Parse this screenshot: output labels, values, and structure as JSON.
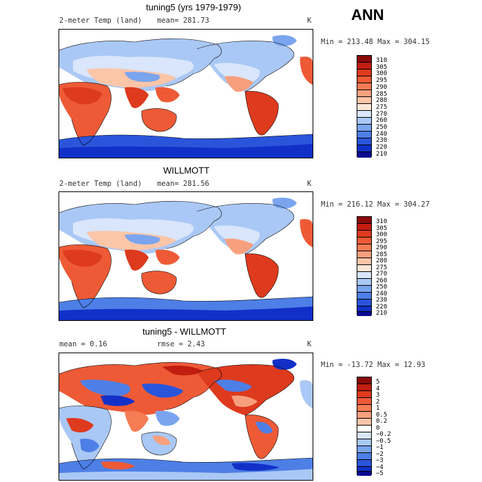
{
  "header": {
    "season": "ANN"
  },
  "panels": [
    {
      "title": "tuning5 (yrs 1979-1979)",
      "variable": "2-meter Temp (land)",
      "stat1": "mean= 281.73",
      "units": "K",
      "range": "Min = 213.48 Max = 304.15",
      "legend_levels": [
        "310",
        "305",
        "300",
        "295",
        "290",
        "285",
        "280",
        "275",
        "270",
        "260",
        "250",
        "240",
        "230",
        "220",
        "210"
      ]
    },
    {
      "title": "WILLMOTT",
      "variable": "2-meter Temp (land)",
      "stat1": "mean= 281.56",
      "units": "K",
      "range": "Min = 216.12 Max = 304.27",
      "legend_levels": [
        "310",
        "305",
        "300",
        "295",
        "290",
        "285",
        "280",
        "275",
        "270",
        "260",
        "250",
        "240",
        "230",
        "220",
        "210"
      ]
    },
    {
      "title": "tuning5 - WILLMOTT",
      "stat1": "mean =    0.16",
      "stat2": "rmse =    2.43",
      "units": "K",
      "range": "Min = -13.72 Max =   12.93",
      "legend_levels": [
        "5",
        "4",
        "3",
        "2",
        "1",
        "0.5",
        "0.2",
        "0",
        "−0.2",
        "−0.5",
        "−1",
        "−2",
        "−3",
        "−4",
        "−5"
      ]
    }
  ],
  "colors": {
    "abs_scale": [
      "#8b0a0a",
      "#c21d10",
      "#de3a1e",
      "#ee5a36",
      "#f57c55",
      "#f8a07e",
      "#fbc5a8",
      "#fde8d8",
      "#d9e6fb",
      "#aac8f5",
      "#7aa5ee",
      "#4d7fe6",
      "#2a55db",
      "#1230c8",
      "#0a0a8f"
    ],
    "diff_scale": [
      "#8b0a0a",
      "#c21d10",
      "#de3a1e",
      "#ee5a36",
      "#f57c55",
      "#f8a07e",
      "#fbc5a8",
      "#ffffff",
      "#d9e6fb",
      "#aac8f5",
      "#7aa5ee",
      "#4d7fe6",
      "#2a55db",
      "#1230c8",
      "#0a0a8f"
    ]
  }
}
